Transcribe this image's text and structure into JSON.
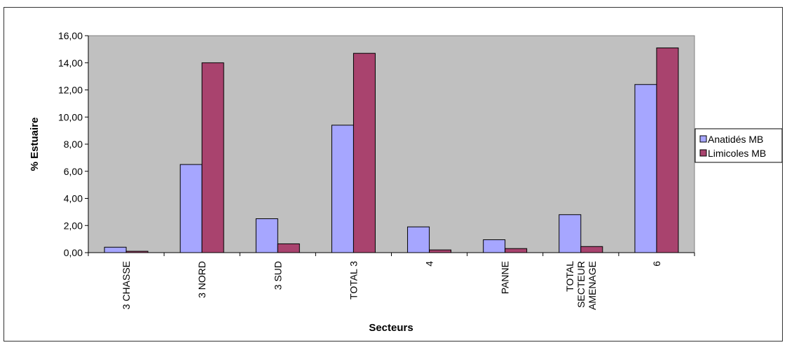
{
  "chart_data": {
    "type": "bar",
    "categories": [
      "3 CHASSE",
      "3 NORD",
      "3 SUD",
      "TOTAL 3",
      "4",
      "PANNE",
      "TOTAL SECTEUR AMENAGE",
      "6"
    ],
    "series": [
      {
        "name": "Anatidés MB",
        "color": "#a6a6ff",
        "values": [
          0.4,
          6.5,
          2.5,
          9.4,
          1.9,
          0.95,
          2.8,
          12.4
        ]
      },
      {
        "name": "Limicoles MB",
        "color": "#a9436e",
        "values": [
          0.1,
          14.0,
          0.65,
          14.7,
          0.2,
          0.3,
          0.45,
          15.1
        ]
      }
    ],
    "xlabel": "Secteurs",
    "ylabel": "% Estuaire",
    "ylim": [
      0,
      16
    ],
    "yticks": [
      "0,00",
      "2,00",
      "4,00",
      "6,00",
      "8,00",
      "10,00",
      "12,00",
      "14,00",
      "16,00"
    ],
    "grid": false,
    "plot_background": "#c0c0c0",
    "legend_position": "right"
  }
}
